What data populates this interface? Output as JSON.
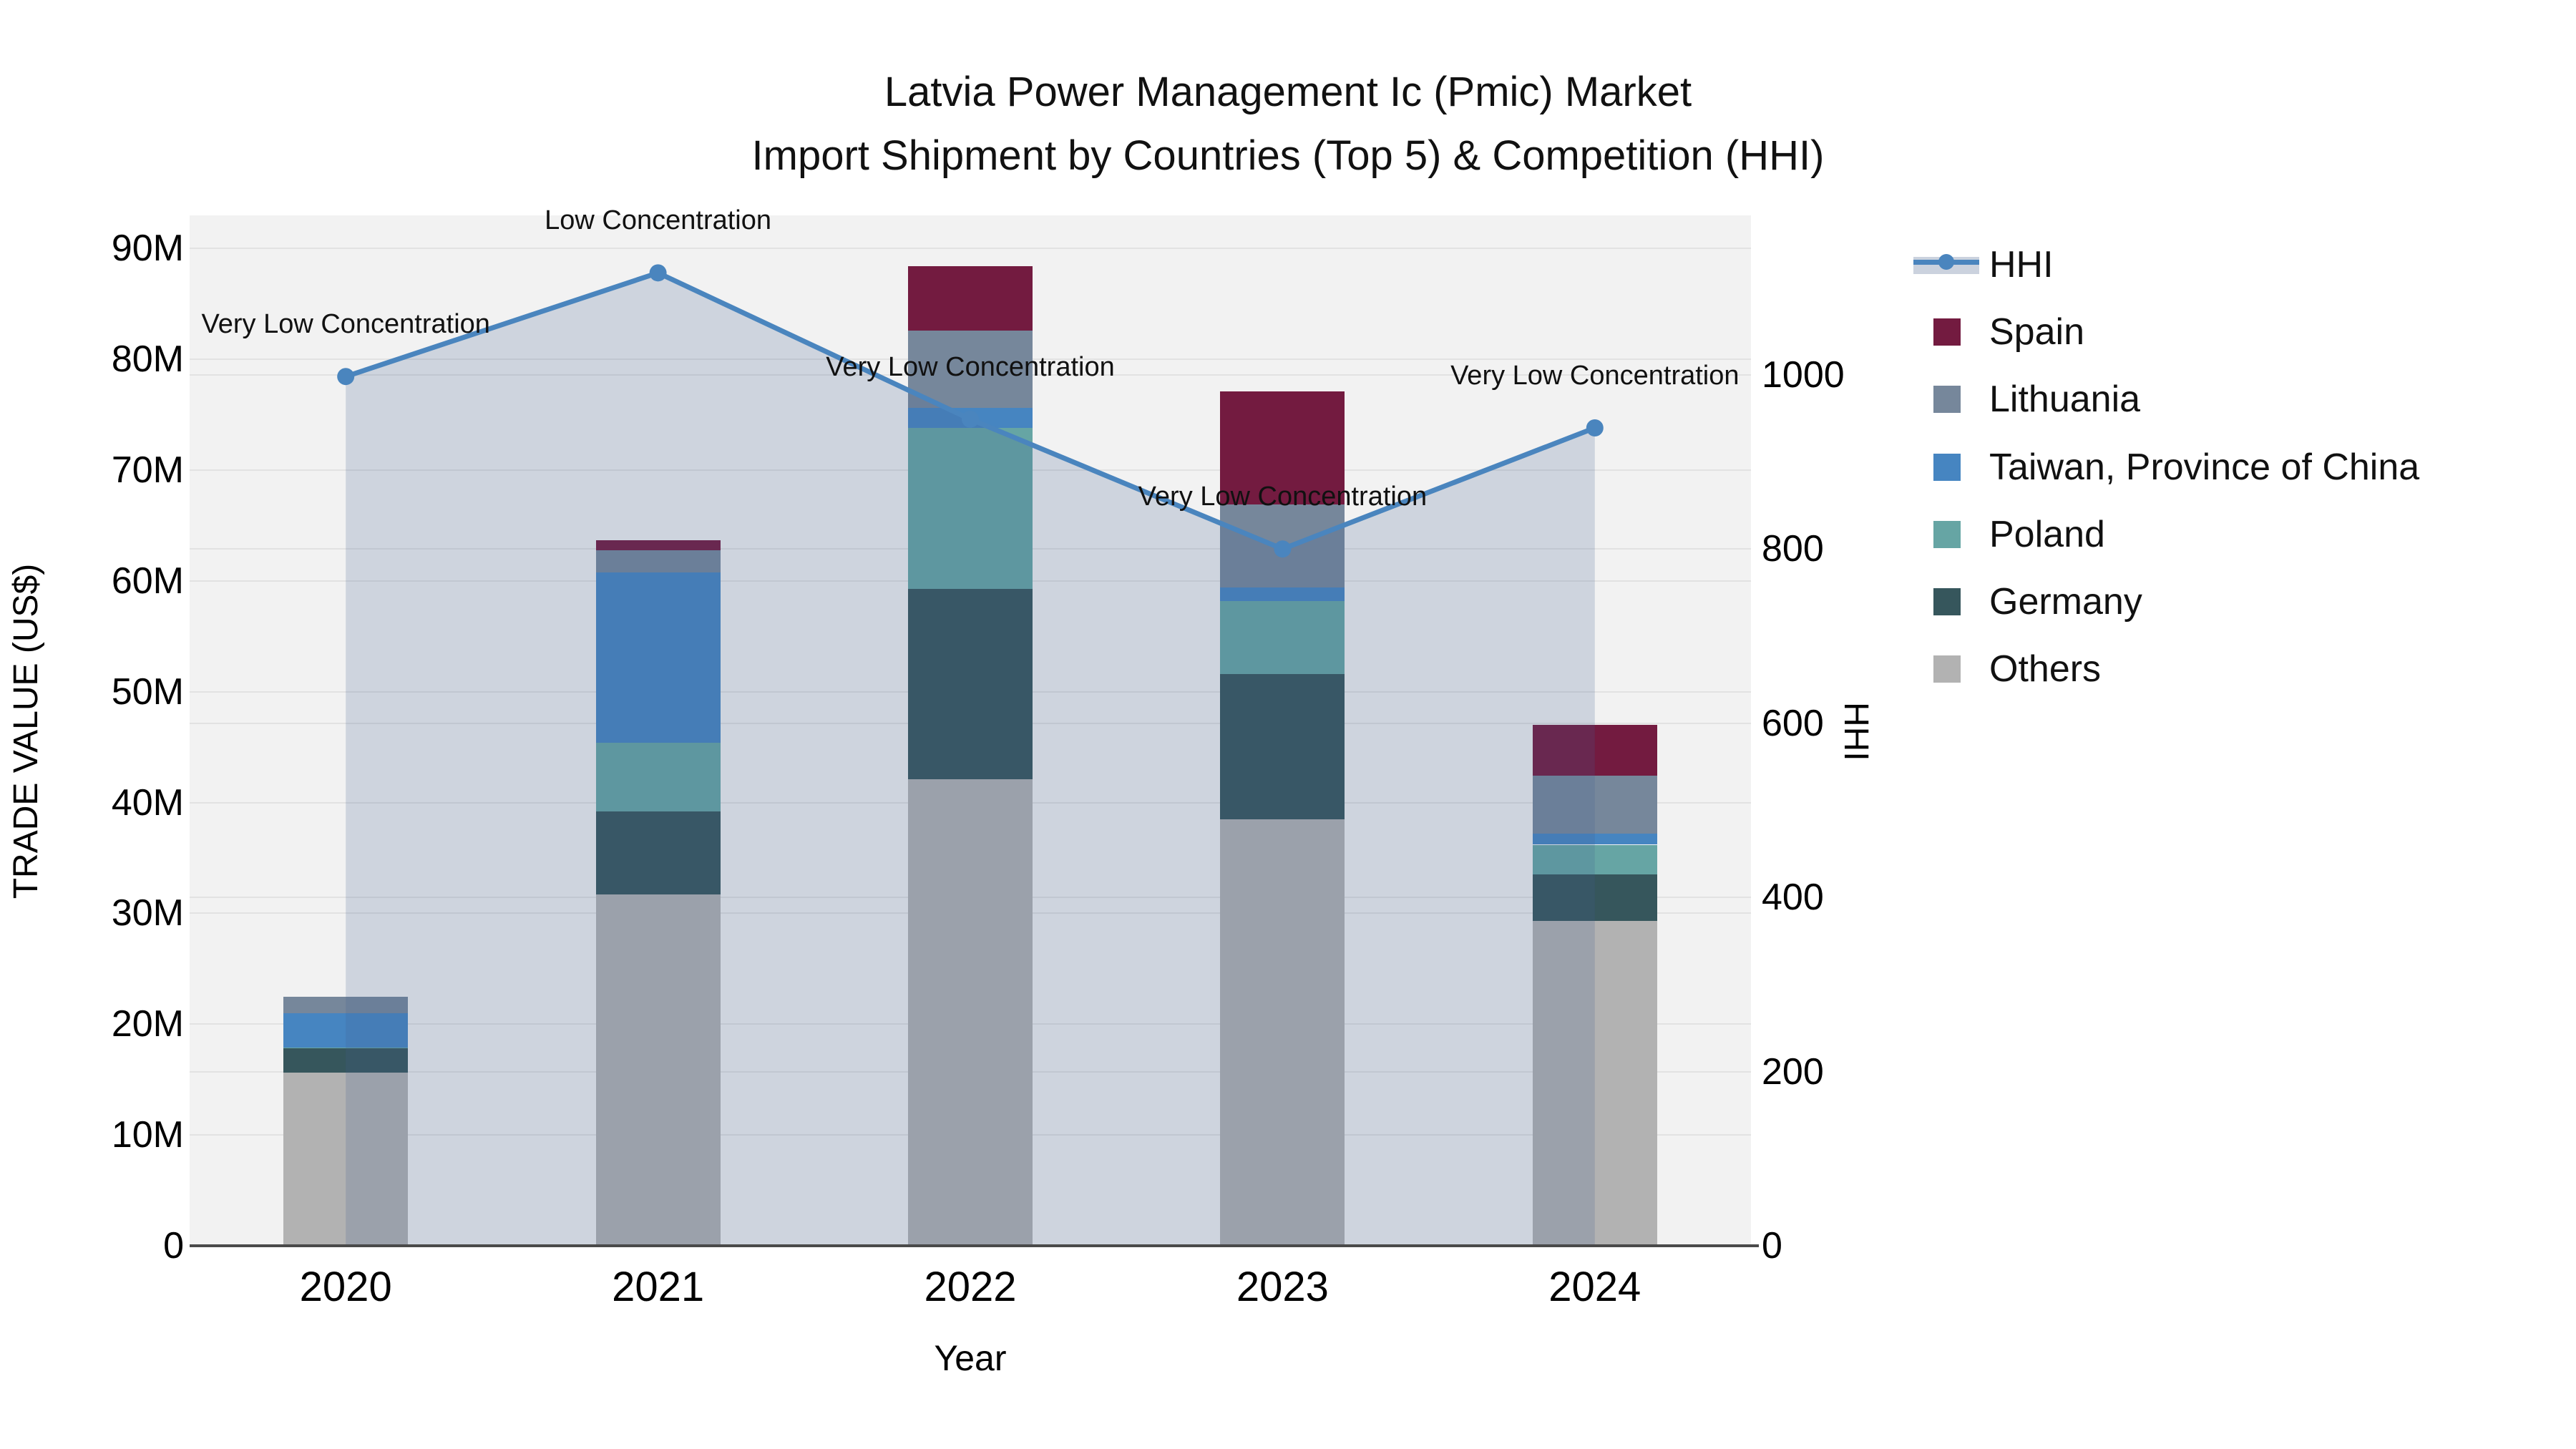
{
  "title": {
    "line1": "Latvia Power Management Ic (Pmic) Market",
    "line2": "Import Shipment by Countries (Top 5) & Competition (HHI)"
  },
  "axes": {
    "y_left_label": "TRADE VALUE (US$)",
    "y_right_label": "HHI",
    "x_label": "Year"
  },
  "legend": {
    "items": [
      {
        "label": "HHI",
        "type": "line",
        "color": "#4A85BE",
        "band": "#CBD2DE"
      },
      {
        "label": "Spain",
        "type": "swatch",
        "color": "#731B40"
      },
      {
        "label": "Lithuania",
        "type": "swatch",
        "color": "#76879B"
      },
      {
        "label": "Taiwan, Province of China",
        "type": "swatch",
        "color": "#4685C1"
      },
      {
        "label": "Poland",
        "type": "swatch",
        "color": "#66A5A4"
      },
      {
        "label": "Germany",
        "type": "swatch",
        "color": "#36565C"
      },
      {
        "label": "Others",
        "type": "swatch",
        "color": "#B2B2B2"
      }
    ]
  },
  "chart_data": {
    "type": "bar",
    "subtype": "stacked-bars-with-line-overlay",
    "categories": [
      "2020",
      "2021",
      "2022",
      "2023",
      "2024"
    ],
    "series": [
      {
        "name": "Spain",
        "color": "#731B40",
        "values_millions": [
          0,
          0.9,
          5.8,
          10.2,
          4.6
        ]
      },
      {
        "name": "Lithuania",
        "color": "#76879B",
        "values_millions": [
          1.5,
          2.0,
          7.0,
          7.5,
          5.2
        ]
      },
      {
        "name": "Taiwan, Province of China",
        "color": "#4685C1",
        "values_millions": [
          3.1,
          15.4,
          1.8,
          1.2,
          1.0
        ]
      },
      {
        "name": "Poland",
        "color": "#66A5A4",
        "values_millions": [
          0.1,
          6.2,
          14.5,
          6.6,
          2.7
        ]
      },
      {
        "name": "Germany",
        "color": "#36565C",
        "values_millions": [
          2.2,
          7.5,
          17.2,
          13.1,
          4.2
        ]
      },
      {
        "name": "Others",
        "color": "#B2B2B2",
        "values_millions": [
          15.6,
          31.7,
          42.1,
          38.5,
          29.3
        ]
      }
    ],
    "stack_order_bottom_to_top": [
      "Others",
      "Germany",
      "Poland",
      "Taiwan, Province of China",
      "Lithuania",
      "Spain"
    ],
    "bar_totals_millions": [
      22.5,
      63.7,
      88.4,
      77.1,
      47.0
    ],
    "line_series": {
      "name": "HHI",
      "color": "#4A85BE",
      "fill": "rgba(64,96,144,0.20)",
      "values": [
        998,
        1117,
        949,
        800,
        939
      ],
      "markers": true
    },
    "annotations": [
      {
        "category": "2020",
        "text": "Very Low Concentration"
      },
      {
        "category": "2021",
        "text": "Low Concentration"
      },
      {
        "category": "2022",
        "text": "Very Low Concentration"
      },
      {
        "category": "2023",
        "text": "Very Low Concentration"
      },
      {
        "category": "2024",
        "text": "Very Low Concentration"
      }
    ],
    "y_left": {
      "label": "TRADE VALUE (US$)",
      "tick_labels": [
        "0",
        "10M",
        "20M",
        "30M",
        "40M",
        "50M",
        "60M",
        "70M",
        "80M",
        "90M"
      ],
      "tick_values_millions": [
        0,
        10,
        20,
        30,
        40,
        50,
        60,
        70,
        80,
        90
      ],
      "range_millions": [
        0,
        93
      ]
    },
    "y_right": {
      "label": "HHI",
      "tick_labels": [
        "0",
        "200",
        "400",
        "600",
        "800",
        "1000"
      ],
      "tick_values": [
        0,
        200,
        400,
        600,
        800,
        1000
      ],
      "range": [
        0,
        1183
      ]
    },
    "xlabel": "Year",
    "plot_background": "#F2F2F2",
    "grid": true,
    "legend_position": "right"
  }
}
